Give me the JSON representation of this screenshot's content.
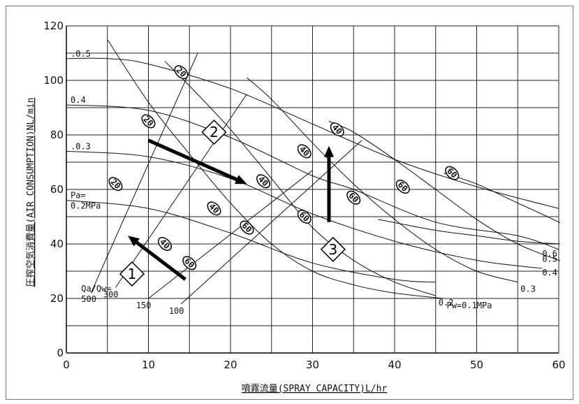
{
  "chart_data": {
    "type": "line",
    "xlabel": "噴霧流量(SPRAY CAPACITY)L/hr",
    "ylabel": "圧搾空気消費量(AIR CONSUMPTION)NL/min",
    "xlim": [
      0,
      60
    ],
    "ylim": [
      0,
      120
    ],
    "x_ticks": [
      "0",
      "10",
      "20",
      "30",
      "40",
      "50",
      "60"
    ],
    "y_ticks": [
      "0",
      "20",
      "40",
      "60",
      "80",
      "100",
      "120"
    ],
    "grid": true,
    "pa_curves": [
      {
        "label": ".0.5",
        "points": [
          [
            0,
            108
          ],
          [
            5,
            108
          ],
          [
            10,
            106
          ],
          [
            20,
            97
          ],
          [
            30,
            84
          ],
          [
            40,
            71
          ],
          [
            50,
            61
          ],
          [
            60,
            53
          ]
        ]
      },
      {
        "label": "0.4",
        "points": [
          [
            0,
            91
          ],
          [
            10,
            89
          ],
          [
            20,
            79
          ],
          [
            30,
            65
          ],
          [
            35,
            60
          ],
          [
            45,
            48
          ],
          [
            55,
            43
          ],
          [
            60,
            38
          ]
        ]
      },
      {
        "label": ".0.3",
        "points": [
          [
            0,
            74
          ],
          [
            10,
            72
          ],
          [
            20,
            64
          ],
          [
            30,
            51
          ],
          [
            40,
            41
          ],
          [
            50,
            34
          ],
          [
            58,
            31
          ]
        ]
      },
      {
        "label": "Pa=\n0.2MPa",
        "points": [
          [
            0,
            56
          ],
          [
            10,
            53
          ],
          [
            20,
            44
          ],
          [
            30,
            33
          ],
          [
            40,
            27
          ],
          [
            45,
            26
          ]
        ]
      }
    ],
    "pw_curves": [
      {
        "label": "Pw=0.1MPa",
        "points": [
          [
            5,
            115
          ],
          [
            10,
            92
          ],
          [
            15,
            73
          ],
          [
            20,
            55
          ],
          [
            25,
            40
          ],
          [
            30,
            30
          ],
          [
            35,
            25
          ],
          [
            40,
            22
          ],
          [
            46,
            20
          ]
        ]
      },
      {
        "label": "0.2",
        "points": [
          [
            12,
            107
          ],
          [
            15,
            98
          ],
          [
            20,
            82
          ],
          [
            25,
            64
          ],
          [
            30,
            46
          ],
          [
            35,
            34
          ],
          [
            40,
            26
          ],
          [
            45,
            21
          ]
        ]
      },
      {
        "label": "0.3",
        "points": [
          [
            22,
            101
          ],
          [
            25,
            93
          ],
          [
            30,
            77
          ],
          [
            35,
            62
          ],
          [
            40,
            49
          ],
          [
            45,
            38
          ],
          [
            50,
            30
          ],
          [
            55,
            26
          ]
        ]
      },
      {
        "label": "0.4",
        "points": [
          [
            32,
            85
          ],
          [
            35,
            81
          ],
          [
            40,
            71
          ],
          [
            45,
            60
          ],
          [
            50,
            49
          ],
          [
            55,
            40
          ],
          [
            60,
            34
          ],
          [
            62,
            32
          ]
        ]
      },
      {
        "label": "0.5",
        "points": [
          [
            46,
            66
          ],
          [
            50,
            62
          ],
          [
            55,
            55
          ],
          [
            60,
            48
          ],
          [
            65,
            40
          ],
          [
            68,
            37
          ]
        ]
      },
      {
        "label": "0.6",
        "points": [
          [
            38,
            49
          ],
          [
            45,
            45
          ],
          [
            50,
            43
          ],
          [
            55,
            41
          ],
          [
            60,
            40
          ],
          [
            66,
            39
          ]
        ]
      }
    ],
    "ratio_lines": [
      {
        "label": "Qa/Qw=\n500",
        "points": [
          [
            3,
            22
          ],
          [
            16,
            110
          ]
        ]
      },
      {
        "label": "300",
        "points": [
          [
            6,
            24
          ],
          [
            22,
            95
          ]
        ]
      },
      {
        "label": "150",
        "points": [
          [
            10,
            20
          ],
          [
            30,
            67
          ]
        ]
      },
      {
        "label": "100",
        "points": [
          [
            14,
            18
          ],
          [
            36,
            78
          ]
        ]
      }
    ],
    "annotations": [
      {
        "text": "1",
        "x": 8,
        "y": 29
      },
      {
        "text": "2",
        "x": 18,
        "y": 81
      },
      {
        "text": "3",
        "x": 32.5,
        "y": 38
      }
    ],
    "ovals": [
      {
        "text": "20",
        "x": 6,
        "y": 62
      },
      {
        "text": "20",
        "x": 10,
        "y": 85
      },
      {
        "text": "20",
        "x": 14,
        "y": 103
      },
      {
        "text": "40",
        "x": 12,
        "y": 40
      },
      {
        "text": "40",
        "x": 18,
        "y": 53
      },
      {
        "text": "40",
        "x": 24,
        "y": 63
      },
      {
        "text": "40",
        "x": 29,
        "y": 74
      },
      {
        "text": "40",
        "x": 33,
        "y": 82
      },
      {
        "text": "60",
        "x": 15,
        "y": 33
      },
      {
        "text": "60",
        "x": 22,
        "y": 46
      },
      {
        "text": "60",
        "x": 29,
        "y": 50
      },
      {
        "text": "60",
        "x": 35,
        "y": 57
      },
      {
        "text": "60",
        "x": 41,
        "y": 61
      },
      {
        "text": "60",
        "x": 47,
        "y": 66
      }
    ]
  }
}
